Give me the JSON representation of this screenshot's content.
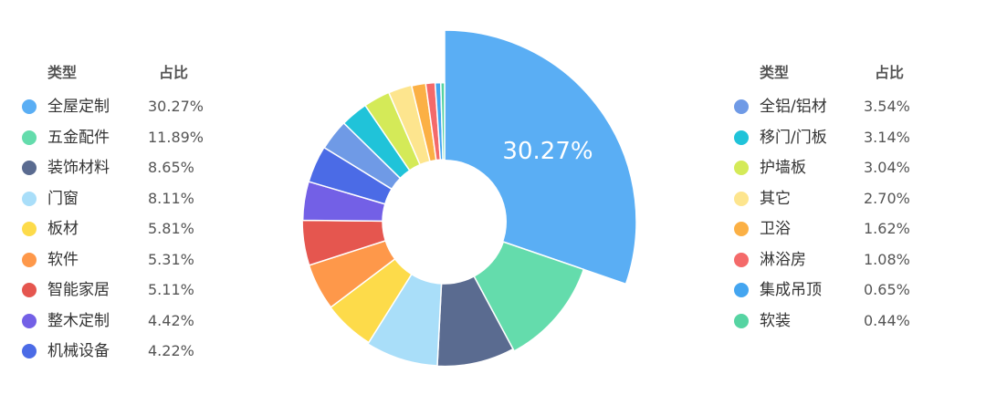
{
  "chart_data": {
    "type": "pie",
    "style": "donut",
    "highlight_label": "30.27%",
    "legend_header": {
      "type_label": "类型",
      "share_label": "占比"
    },
    "slices": [
      {
        "name": "全屋定制",
        "value": 30.27,
        "label": "30.27%",
        "color": "#5aaef4"
      },
      {
        "name": "五金配件",
        "value": 11.89,
        "label": "11.89%",
        "color": "#64dcac"
      },
      {
        "name": "装饰材料",
        "value": 8.65,
        "label": "8.65%",
        "color": "#5a6b90"
      },
      {
        "name": "门窗",
        "value": 8.11,
        "label": "8.11%",
        "color": "#a9def9"
      },
      {
        "name": "板材",
        "value": 5.81,
        "label": "5.81%",
        "color": "#fddb4a"
      },
      {
        "name": "软件",
        "value": 5.31,
        "label": "5.31%",
        "color": "#fe984a"
      },
      {
        "name": "智能家居",
        "value": 5.11,
        "label": "5.11%",
        "color": "#e5564f"
      },
      {
        "name": "整木定制",
        "value": 4.42,
        "label": "4.42%",
        "color": "#7360e6"
      },
      {
        "name": "机械设备",
        "value": 4.22,
        "label": "4.22%",
        "color": "#4b6be6"
      },
      {
        "name": "全铝/铝材",
        "value": 3.54,
        "label": "3.54%",
        "color": "#6f9ae6"
      },
      {
        "name": "移门/门板",
        "value": 3.14,
        "label": "3.14%",
        "color": "#20c3d9"
      },
      {
        "name": "护墙板",
        "value": 3.04,
        "label": "3.04%",
        "color": "#d4ea58"
      },
      {
        "name": "其它",
        "value": 2.7,
        "label": "2.70%",
        "color": "#fde58e"
      },
      {
        "name": "卫浴",
        "value": 1.62,
        "label": "1.62%",
        "color": "#fbb045"
      },
      {
        "name": "淋浴房",
        "value": 1.08,
        "label": "1.08%",
        "color": "#f46a6a"
      },
      {
        "name": "集成吊顶",
        "value": 0.65,
        "label": "0.65%",
        "color": "#44a5f0"
      },
      {
        "name": "软装",
        "value": 0.44,
        "label": "0.44%",
        "color": "#56d4a2"
      }
    ]
  }
}
